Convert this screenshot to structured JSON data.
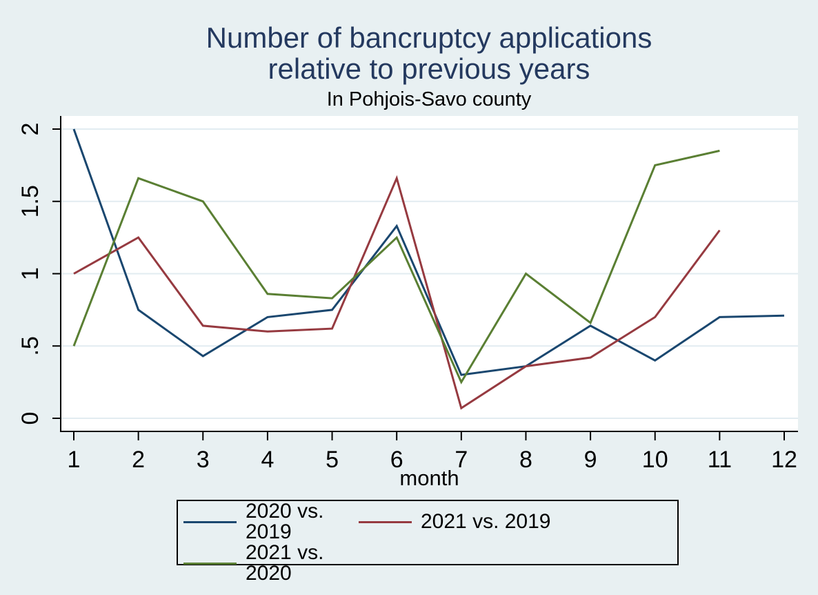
{
  "title": {
    "text": "Number of bancruptcy applications\nrelative to previous years",
    "color": "#24395f"
  },
  "subtitle": "In Pohjois-Savo county",
  "colors": {
    "page_bg": "#e8f0f2",
    "plot_bg": "#ffffff",
    "grid": "#e2ecf1",
    "axis": "#000000",
    "text": "#000000",
    "legend_border": "#000000"
  },
  "chart_data": {
    "type": "line",
    "x": [
      1,
      2,
      3,
      4,
      5,
      6,
      7,
      8,
      9,
      10,
      11,
      12
    ],
    "xticks": [
      "1",
      "2",
      "3",
      "4",
      "5",
      "6",
      "7",
      "8",
      "9",
      "10",
      "11",
      "12"
    ],
    "xlabel": "month",
    "ylabel": "",
    "ylim": [
      0,
      2
    ],
    "yticks": [
      {
        "value": 0,
        "label": "0"
      },
      {
        "value": 0.5,
        "label": ".5"
      },
      {
        "value": 1,
        "label": "1"
      },
      {
        "value": 1.5,
        "label": "1.5"
      },
      {
        "value": 2,
        "label": "2"
      }
    ],
    "grid": "horizontal",
    "legend_position": "bottom",
    "series": [
      {
        "name": "2020 vs. 2019",
        "color": "#1a476f",
        "values": [
          2.0,
          0.75,
          0.43,
          0.7,
          0.75,
          1.33,
          0.3,
          0.36,
          0.64,
          0.4,
          0.7,
          0.71
        ]
      },
      {
        "name": "2021 vs. 2019",
        "color": "#963a40",
        "values": [
          1.0,
          1.25,
          0.64,
          0.6,
          0.62,
          1.66,
          0.07,
          0.36,
          0.42,
          0.7,
          1.3,
          null
        ]
      },
      {
        "name": "2021 vs. 2020",
        "color": "#5a7f33",
        "values": [
          0.5,
          1.66,
          1.5,
          0.86,
          0.83,
          1.25,
          0.25,
          1.0,
          0.66,
          1.75,
          1.85,
          null
        ]
      }
    ]
  }
}
